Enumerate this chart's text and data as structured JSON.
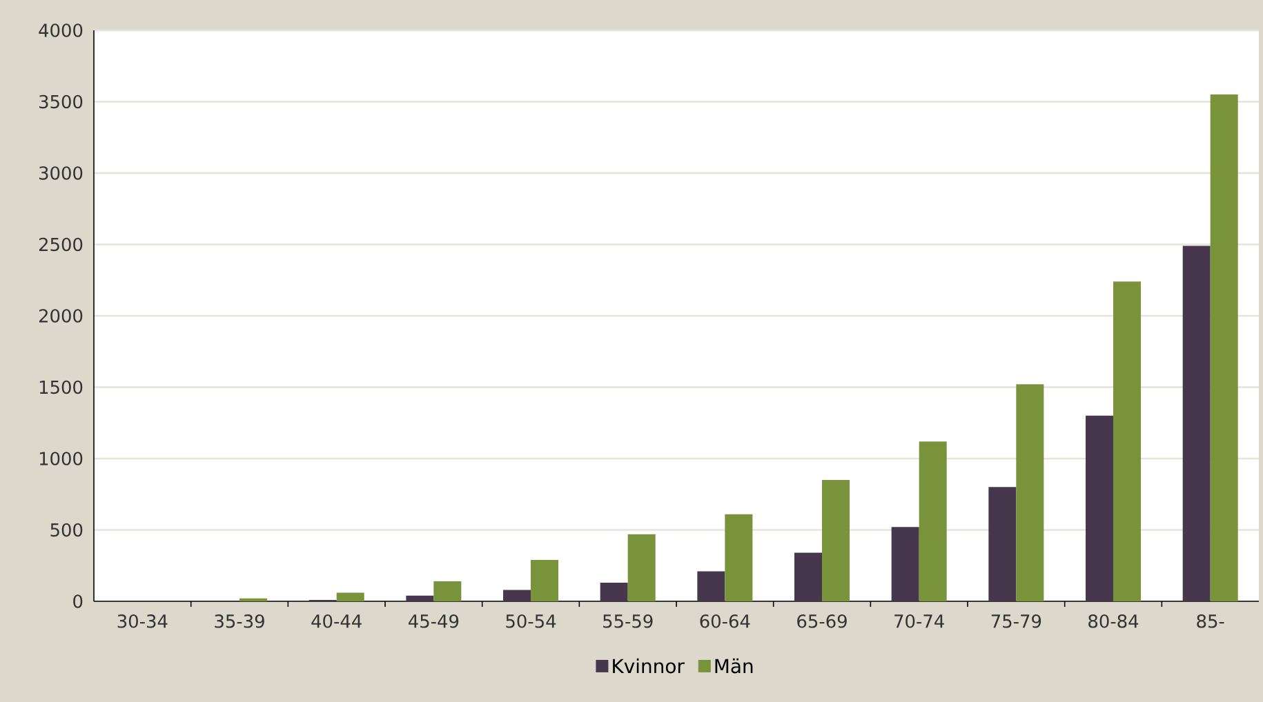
{
  "chart_data": {
    "type": "bar",
    "categories": [
      "30-34",
      "35-39",
      "40-44",
      "45-49",
      "50-54",
      "55-59",
      "60-64",
      "65-69",
      "70-74",
      "75-79",
      "80-84",
      "85-"
    ],
    "series": [
      {
        "name": "Kvinnor",
        "color": "#46374d",
        "values": [
          0,
          0,
          10,
          40,
          80,
          130,
          210,
          340,
          520,
          800,
          1300,
          2490
        ]
      },
      {
        "name": "Män",
        "color": "#78933a",
        "values": [
          0,
          20,
          60,
          140,
          290,
          470,
          610,
          850,
          1120,
          1520,
          2240,
          3550
        ]
      }
    ],
    "ylim": [
      0,
      4000
    ],
    "yticks": [
      0,
      500,
      1000,
      1500,
      2000,
      2500,
      3000,
      3500,
      4000
    ],
    "grid": "y",
    "legend": "bottom"
  }
}
